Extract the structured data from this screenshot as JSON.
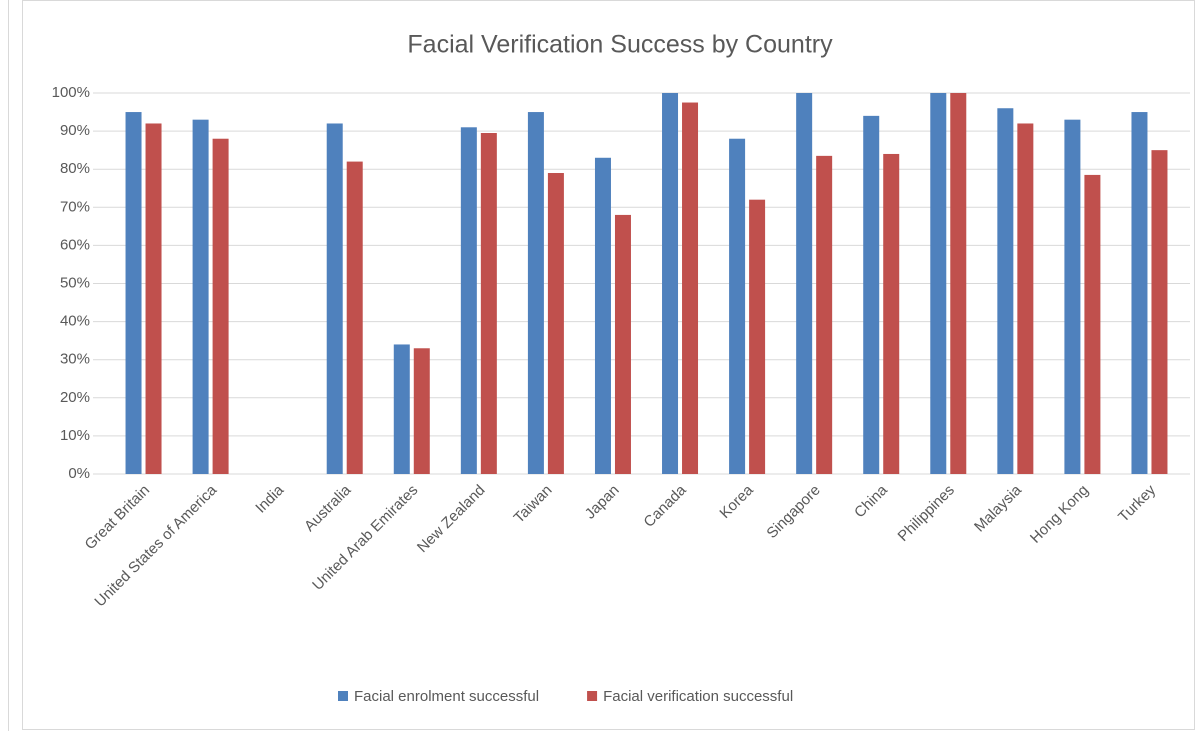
{
  "chart_data": {
    "type": "bar",
    "title": "Facial Verification Success by Country",
    "categories": [
      "Great Britain",
      "United States of America",
      "India",
      "Australia",
      "United Arab Emirates",
      "New Zealand",
      "Taiwan",
      "Japan",
      "Canada",
      "Korea",
      "Singapore",
      "China",
      "Philippines",
      "Malaysia",
      "Hong Kong",
      "Turkey"
    ],
    "series": [
      {
        "name": "Facial enrolment successful",
        "color": "#4f81bd",
        "values": [
          95,
          93,
          null,
          92,
          34,
          91,
          95,
          83,
          100,
          88,
          100,
          94,
          100,
          96,
          93,
          95
        ]
      },
      {
        "name": "Facial verification successful",
        "color": "#c0504d",
        "values": [
          92,
          88,
          null,
          82,
          33,
          89.5,
          79,
          68,
          97.5,
          72,
          83.5,
          84,
          100,
          92,
          78.5,
          85
        ]
      }
    ],
    "ylim": [
      0,
      100
    ],
    "yticks": [
      {
        "value": 0,
        "label": "0%"
      },
      {
        "value": 10,
        "label": "10%"
      },
      {
        "value": 20,
        "label": "20%"
      },
      {
        "value": 30,
        "label": "30%"
      },
      {
        "value": 40,
        "label": "40%"
      },
      {
        "value": 50,
        "label": "50%"
      },
      {
        "value": 60,
        "label": "60%"
      },
      {
        "value": 70,
        "label": "70%"
      },
      {
        "value": 80,
        "label": "80%"
      },
      {
        "value": 90,
        "label": "90%"
      },
      {
        "value": 100,
        "label": "100%"
      }
    ],
    "grid": true,
    "legend": "bottom"
  }
}
